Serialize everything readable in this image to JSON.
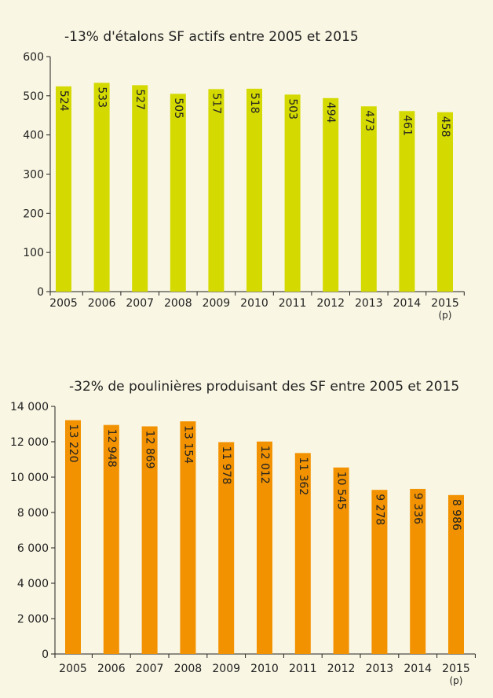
{
  "chart_data": [
    {
      "type": "bar",
      "title": "-13% d'étalons SF actifs entre 2005 et 2015",
      "categories": [
        "2005",
        "2006",
        "2007",
        "2008",
        "2009",
        "2010",
        "2011",
        "2012",
        "2013",
        "2014",
        "2015"
      ],
      "category_sublabels": [
        "",
        "",
        "",
        "",
        "",
        "",
        "",
        "",
        "",
        "",
        "(p)"
      ],
      "values": [
        524,
        533,
        527,
        505,
        517,
        518,
        503,
        494,
        473,
        461,
        458
      ],
      "value_labels": [
        "524",
        "533",
        "527",
        "505",
        "517",
        "518",
        "503",
        "494",
        "473",
        "461",
        "458"
      ],
      "ylim": [
        0,
        600
      ],
      "yticks": [
        0,
        100,
        200,
        300,
        400,
        500,
        600
      ],
      "ytick_labels": [
        "0",
        "100",
        "200",
        "300",
        "400",
        "500",
        "600"
      ],
      "bar_color": "#d4da00",
      "grid": false
    },
    {
      "type": "bar",
      "title": "-32% de poulinières produisant des SF entre 2005 et 2015",
      "categories": [
        "2005",
        "2006",
        "2007",
        "2008",
        "2009",
        "2010",
        "2011",
        "2012",
        "2013",
        "2014",
        "2015"
      ],
      "category_sublabels": [
        "",
        "",
        "",
        "",
        "",
        "",
        "",
        "",
        "",
        "",
        "(p)"
      ],
      "values": [
        13220,
        12948,
        12869,
        13154,
        11978,
        12012,
        11362,
        10545,
        9278,
        9336,
        8986
      ],
      "value_labels": [
        "13 220",
        "12 948",
        "12 869",
        "13 154",
        "11 978",
        "12 012",
        "11 362",
        "10 545",
        "9 278",
        "9 336",
        "8 986"
      ],
      "ylim": [
        0,
        14000
      ],
      "yticks": [
        0,
        2000,
        4000,
        6000,
        8000,
        10000,
        12000,
        14000
      ],
      "ytick_labels": [
        "0",
        "2 000",
        "4 000",
        "6 000",
        "8 000",
        "10 000",
        "12 000",
        "14 000"
      ],
      "bar_color": "#f29200",
      "grid": false
    }
  ]
}
